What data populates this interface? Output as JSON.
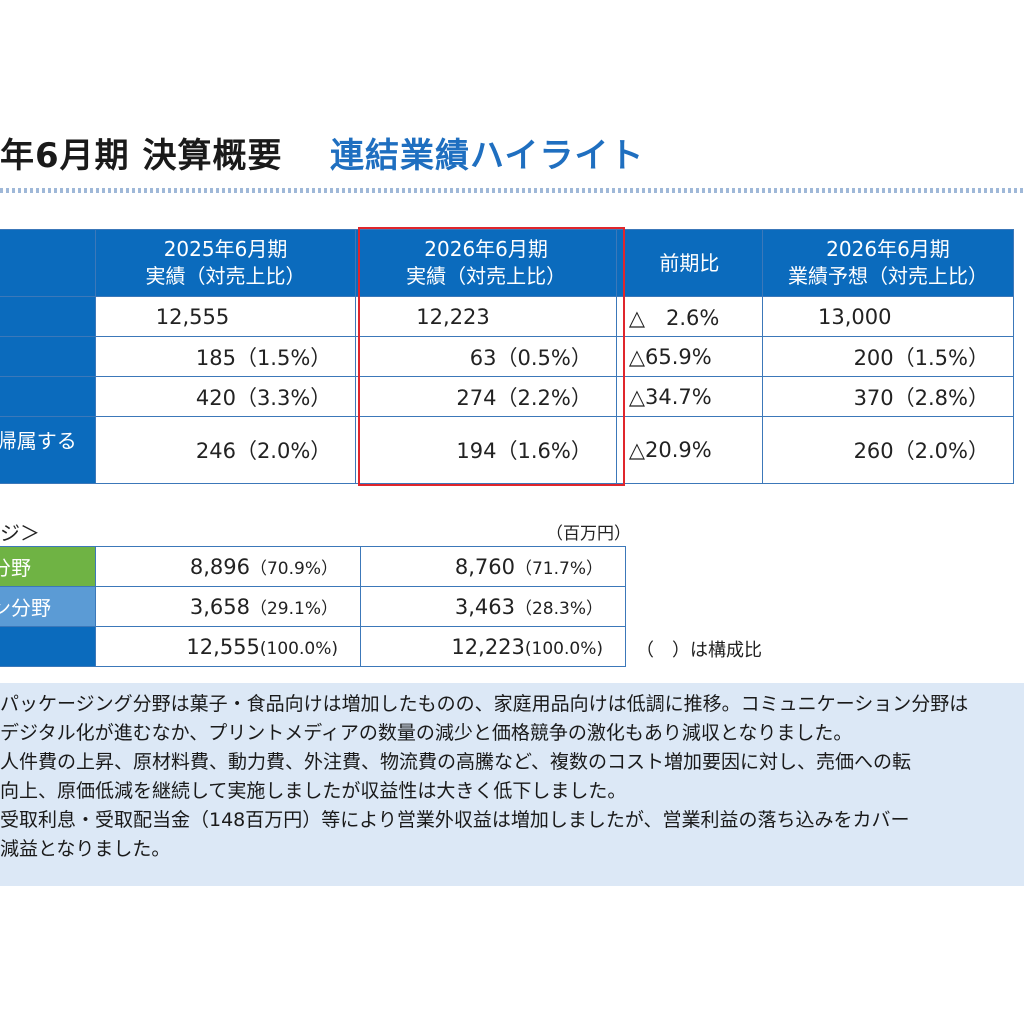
{
  "title": {
    "left": "年6月期 決算概要",
    "right": "連結業績ハイライト"
  },
  "main_table": {
    "headers": [
      "2025年6月期\n実績（対売上比）",
      "2026年6月期\n実績（対売上比）",
      "前期比",
      "2026年6月期\n業績予想（対売上比）"
    ],
    "rows": [
      {
        "label": "",
        "fy2025": "12,555",
        "fy2026": "12,223",
        "yoy": "△　2.6%",
        "forecast": "13,000"
      },
      {
        "label": "",
        "fy2025": "185（1.5%）",
        "fy2026": "63（0.5%）",
        "yoy": "△65.9%",
        "forecast": "200（1.5%）"
      },
      {
        "label": "",
        "fy2025": "420（3.3%）",
        "fy2026": "274（2.2%）",
        "yoy": "△34.7%",
        "forecast": "370（2.8%）"
      },
      {
        "label": "帰属する",
        "fy2025": "246（2.0%）",
        "fy2026": "194（1.6%）",
        "yoy": "△20.9%",
        "forecast": "260（2.0%）"
      }
    ]
  },
  "segment": {
    "heading": "ジ＞",
    "unit": "（百万円）",
    "rows": [
      {
        "label": "分野",
        "fy2025_value": "8,896",
        "fy2025_ratio": "（70.9%）",
        "fy2026_value": "8,760",
        "fy2026_ratio": "（71.7%）"
      },
      {
        "label": "ン分野",
        "fy2025_value": "3,658",
        "fy2026_value": "3,463",
        "fy2025_ratio": "（29.1%）",
        "fy2026_ratio": "（28.3%）"
      },
      {
        "label": "",
        "fy2025_value": "12,555",
        "fy2025_ratio": "(100.0%)",
        "fy2026_value": "12,223",
        "fy2026_ratio": "(100.0%)"
      }
    ],
    "note": "（　）は構成比"
  },
  "comments": [
    "パッケージング分野は菓子・食品向けは増加したものの、家庭用品向けは低調に推移。コミュニケーション分野は",
    "デジタル化が進むなか、プリントメディアの数量の減少と価格競争の激化もあり減収となりました。",
    "人件費の上昇、原材料費、動力費、外注費、物流費の高騰など、複数のコスト増加要因に対し、売価への転",
    "向上、原価低減を継続して実施しましたが収益性は大きく低下しました。",
    "受取利息・受取配当金（148百万円）等により営業外収益は増加しましたが、営業利益の落ち込みをカバー",
    "減益となりました。"
  ],
  "colors": {
    "header_blue": "#0b6bbd",
    "title_blue": "#1f6fc0",
    "highlight_red": "#e0262c",
    "green": "#6fb344",
    "light_blue": "#5b9bd5",
    "comment_bg": "#dce8f6"
  }
}
